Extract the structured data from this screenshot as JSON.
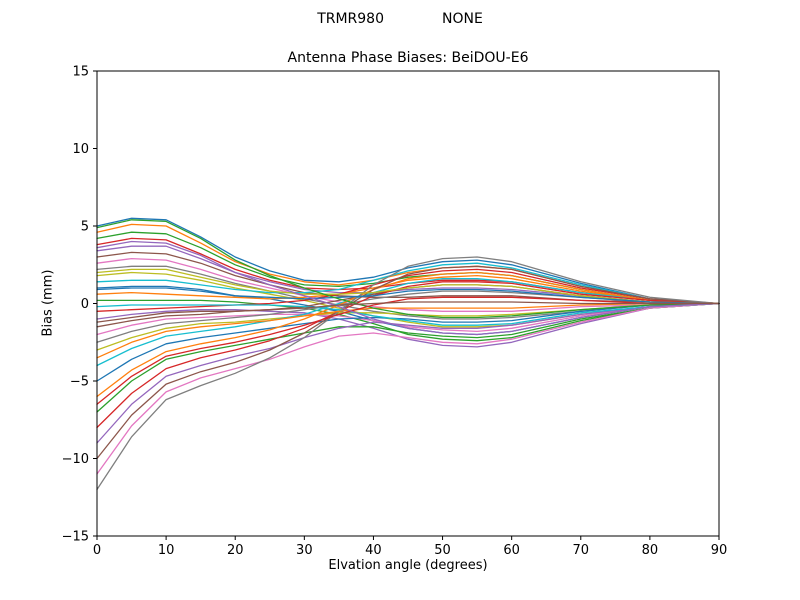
{
  "chart_data": {
    "type": "line",
    "suptitle_left": "TRMR980",
    "suptitle_right": "NONE",
    "title": "Antenna Phase Biases: BeiDOU-E6",
    "xlabel": "Elvation angle (degrees)",
    "ylabel": "Bias (mm)",
    "xlim": [
      0,
      90
    ],
    "ylim": [
      -15,
      15
    ],
    "xticks": [
      0,
      10,
      20,
      30,
      40,
      50,
      60,
      70,
      80,
      90
    ],
    "yticks": [
      15,
      10,
      5,
      0,
      -5,
      -10,
      -15
    ],
    "grid": false,
    "legend": "none",
    "axis_color": "#000000",
    "x": [
      0,
      5,
      10,
      15,
      20,
      25,
      30,
      35,
      40,
      45,
      50,
      55,
      60,
      70,
      80,
      90
    ],
    "series": [
      {
        "color": "#1f77b4",
        "values": [
          5.0,
          5.5,
          5.4,
          4.3,
          3.0,
          2.1,
          1.5,
          1.4,
          1.7,
          2.3,
          2.7,
          2.8,
          2.5,
          1.3,
          0.3,
          0.0
        ]
      },
      {
        "color": "#ff7f0e",
        "values": [
          4.6,
          5.1,
          5.0,
          3.9,
          2.7,
          1.9,
          1.4,
          1.2,
          1.5,
          2.0,
          2.3,
          2.4,
          2.2,
          1.1,
          0.3,
          0.0
        ]
      },
      {
        "color": "#2ca02c",
        "values": [
          4.2,
          4.6,
          4.5,
          3.6,
          2.5,
          1.7,
          1.2,
          1.1,
          1.3,
          1.7,
          1.9,
          2.0,
          1.8,
          0.9,
          0.2,
          0.0
        ]
      },
      {
        "color": "#d62728",
        "values": [
          3.8,
          4.2,
          4.1,
          3.2,
          2.2,
          1.5,
          1.0,
          0.9,
          1.0,
          1.3,
          1.5,
          1.5,
          1.4,
          0.7,
          0.2,
          0.0
        ]
      },
      {
        "color": "#9467bd",
        "values": [
          3.4,
          3.7,
          3.7,
          2.9,
          2.0,
          1.4,
          0.9,
          0.7,
          0.7,
          0.9,
          1.0,
          1.0,
          0.9,
          0.5,
          0.1,
          0.0
        ]
      },
      {
        "color": "#8c564b",
        "values": [
          3.0,
          3.3,
          3.2,
          2.6,
          1.8,
          1.2,
          0.7,
          0.5,
          0.4,
          0.4,
          0.5,
          0.5,
          0.5,
          0.2,
          0.1,
          0.0
        ]
      },
      {
        "color": "#e377c2",
        "values": [
          2.6,
          2.9,
          2.8,
          2.2,
          1.5,
          1.0,
          0.5,
          0.1,
          -0.2,
          -0.4,
          -0.5,
          -0.5,
          -0.5,
          -0.2,
          -0.1,
          0.0
        ]
      },
      {
        "color": "#7f7f7f",
        "values": [
          2.2,
          2.4,
          2.4,
          1.9,
          1.3,
          0.8,
          0.3,
          -0.1,
          -0.5,
          -0.8,
          -1.0,
          -1.0,
          -0.9,
          -0.5,
          -0.1,
          0.0
        ]
      },
      {
        "color": "#bcbd22",
        "values": [
          1.8,
          2.0,
          1.9,
          1.5,
          1.0,
          0.6,
          0.2,
          -0.3,
          -0.8,
          -1.2,
          -1.5,
          -1.5,
          -1.4,
          -0.7,
          -0.2,
          0.0
        ]
      },
      {
        "color": "#17becf",
        "values": [
          1.4,
          1.5,
          1.5,
          1.2,
          0.9,
          0.7,
          0.7,
          0.9,
          1.5,
          2.1,
          2.5,
          2.6,
          2.3,
          1.2,
          0.3,
          0.0
        ]
      },
      {
        "color": "#1f77b4",
        "values": [
          1.0,
          1.1,
          1.1,
          0.9,
          0.5,
          0.3,
          -0.1,
          -0.5,
          -1.1,
          -1.6,
          -1.9,
          -2.0,
          -1.8,
          -0.9,
          -0.2,
          0.0
        ]
      },
      {
        "color": "#ff7f0e",
        "values": [
          0.6,
          0.7,
          0.6,
          0.5,
          0.4,
          0.3,
          0.4,
          0.6,
          1.0,
          1.5,
          1.7,
          1.8,
          1.6,
          0.8,
          0.2,
          0.0
        ]
      },
      {
        "color": "#2ca02c",
        "values": [
          0.2,
          0.2,
          0.2,
          0.2,
          0.1,
          -0.1,
          -0.3,
          -0.7,
          -1.3,
          -2.0,
          -2.3,
          -2.4,
          -2.2,
          -1.1,
          -0.3,
          0.0
        ]
      },
      {
        "color": "#d62728",
        "values": [
          -0.5,
          -0.4,
          -0.3,
          -0.2,
          -0.1,
          0.0,
          0.2,
          0.6,
          1.2,
          1.8,
          2.1,
          2.2,
          2.0,
          1.0,
          0.3,
          0.0
        ]
      },
      {
        "color": "#9467bd",
        "values": [
          -1.0,
          -0.7,
          -0.5,
          -0.4,
          -0.4,
          -0.5,
          -0.6,
          -1.0,
          -1.6,
          -2.3,
          -2.7,
          -2.8,
          -2.5,
          -1.3,
          -0.3,
          0.0
        ]
      },
      {
        "color": "#8c564b",
        "values": [
          -1.5,
          -1.1,
          -0.8,
          -0.7,
          -0.5,
          -0.4,
          -0.2,
          0.2,
          0.6,
          1.0,
          1.2,
          1.2,
          1.1,
          0.5,
          0.1,
          0.0
        ]
      },
      {
        "color": "#e377c2",
        "values": [
          -2.0,
          -1.4,
          -1.0,
          -0.9,
          -0.8,
          -0.7,
          -0.7,
          -0.8,
          -1.1,
          -1.5,
          -1.7,
          -1.8,
          -1.6,
          -0.8,
          -0.2,
          0.0
        ]
      },
      {
        "color": "#7f7f7f",
        "values": [
          -2.5,
          -1.8,
          -1.3,
          -1.1,
          -0.9,
          -0.7,
          -0.4,
          -0.1,
          0.3,
          0.6,
          0.8,
          0.8,
          0.7,
          0.4,
          0.1,
          0.0
        ]
      },
      {
        "color": "#bcbd22",
        "values": [
          -3.0,
          -2.2,
          -1.6,
          -1.3,
          -1.2,
          -1.0,
          -0.8,
          -0.6,
          -0.6,
          -0.7,
          -0.8,
          -0.8,
          -0.7,
          -0.4,
          -0.1,
          0.0
        ]
      },
      {
        "color": "#17becf",
        "values": [
          -4.0,
          -2.9,
          -2.1,
          -1.8,
          -1.5,
          -1.1,
          -0.7,
          0.0,
          0.7,
          1.3,
          1.6,
          1.6,
          1.4,
          0.7,
          0.2,
          0.0
        ]
      },
      {
        "color": "#1f77b4",
        "values": [
          -5.0,
          -3.6,
          -2.6,
          -2.2,
          -1.9,
          -1.6,
          -1.3,
          -1.0,
          -0.9,
          -1.0,
          -1.2,
          -1.2,
          -1.1,
          -0.5,
          -0.1,
          0.0
        ]
      },
      {
        "color": "#ff7f0e",
        "values": [
          -6.0,
          -4.3,
          -3.1,
          -2.6,
          -2.2,
          -1.7,
          -1.0,
          -0.1,
          0.9,
          1.6,
          1.9,
          2.0,
          1.8,
          0.9,
          0.2,
          0.0
        ]
      },
      {
        "color": "#2ca02c",
        "values": [
          -7.0,
          -5.0,
          -3.6,
          -3.1,
          -2.7,
          -2.3,
          -1.9,
          -1.5,
          -1.5,
          -1.9,
          -2.1,
          -2.2,
          -2.0,
          -1.0,
          -0.3,
          0.0
        ]
      },
      {
        "color": "#d62728",
        "values": [
          -8.0,
          -5.8,
          -4.2,
          -3.5,
          -3.0,
          -2.4,
          -1.6,
          -0.5,
          0.5,
          1.1,
          1.4,
          1.4,
          1.3,
          0.6,
          0.2,
          0.0
        ]
      },
      {
        "color": "#9467bd",
        "values": [
          -9.0,
          -6.5,
          -4.7,
          -4.0,
          -3.4,
          -2.9,
          -2.2,
          -1.6,
          -1.2,
          -1.4,
          -1.6,
          -1.6,
          -1.4,
          -0.7,
          -0.2,
          0.0
        ]
      },
      {
        "color": "#8c564b",
        "values": [
          -10.0,
          -7.2,
          -5.2,
          -4.4,
          -3.8,
          -3.0,
          -1.9,
          -0.5,
          0.9,
          1.9,
          2.3,
          2.4,
          2.2,
          1.1,
          0.3,
          0.0
        ]
      },
      {
        "color": "#e377c2",
        "values": [
          -11.0,
          -7.9,
          -5.7,
          -4.8,
          -4.2,
          -3.6,
          -2.8,
          -2.1,
          -1.9,
          -2.2,
          -2.5,
          -2.6,
          -2.3,
          -1.2,
          -0.3,
          0.0
        ]
      },
      {
        "color": "#7f7f7f",
        "values": [
          -12.0,
          -8.6,
          -6.2,
          -5.3,
          -4.5,
          -3.5,
          -2.2,
          -0.5,
          1.2,
          2.4,
          2.9,
          3.0,
          2.7,
          1.4,
          0.4,
          0.0
        ]
      },
      {
        "color": "#bcbd22",
        "values": [
          2.0,
          2.2,
          2.2,
          1.7,
          1.2,
          0.8,
          0.6,
          0.6,
          0.7,
          1.0,
          1.2,
          1.2,
          1.1,
          0.5,
          0.1,
          0.0
        ]
      },
      {
        "color": "#17becf",
        "values": [
          -0.2,
          -0.1,
          -0.1,
          -0.1,
          -0.1,
          -0.1,
          -0.2,
          -0.4,
          -0.8,
          -1.1,
          -1.4,
          -1.4,
          -1.3,
          -0.6,
          -0.2,
          0.0
        ]
      },
      {
        "color": "#1f77b4",
        "values": [
          0.9,
          1.0,
          1.0,
          0.8,
          0.5,
          0.4,
          0.3,
          0.4,
          0.5,
          0.8,
          0.9,
          0.9,
          0.8,
          0.4,
          0.1,
          0.0
        ]
      },
      {
        "color": "#ff7f0e",
        "values": [
          -3.5,
          -2.5,
          -1.8,
          -1.5,
          -1.3,
          -1.1,
          -0.8,
          -0.5,
          -0.3,
          -0.3,
          -0.3,
          -0.3,
          -0.3,
          -0.1,
          0.0,
          0.0
        ]
      },
      {
        "color": "#2ca02c",
        "values": [
          4.9,
          5.4,
          5.3,
          4.2,
          2.8,
          1.8,
          1.0,
          0.3,
          -0.3,
          -0.7,
          -0.9,
          -0.9,
          -0.8,
          -0.4,
          -0.1,
          0.0
        ]
      },
      {
        "color": "#d62728",
        "values": [
          -6.5,
          -4.7,
          -3.4,
          -2.9,
          -2.5,
          -2.0,
          -1.4,
          -0.7,
          -0.1,
          0.3,
          0.4,
          0.4,
          0.4,
          0.2,
          0.0,
          0.0
        ]
      },
      {
        "color": "#9467bd",
        "values": [
          3.6,
          4.0,
          3.9,
          3.1,
          2.0,
          1.2,
          0.5,
          -0.2,
          -1.0,
          -1.6,
          -1.9,
          -2.0,
          -1.8,
          -0.9,
          -0.2,
          0.0
        ]
      },
      {
        "color": "#8c564b",
        "values": [
          -1.2,
          -0.9,
          -0.6,
          -0.5,
          -0.5,
          -0.4,
          -0.3,
          -0.1,
          0.0,
          0.1,
          0.1,
          0.1,
          0.1,
          0.0,
          0.0,
          0.0
        ]
      }
    ]
  }
}
